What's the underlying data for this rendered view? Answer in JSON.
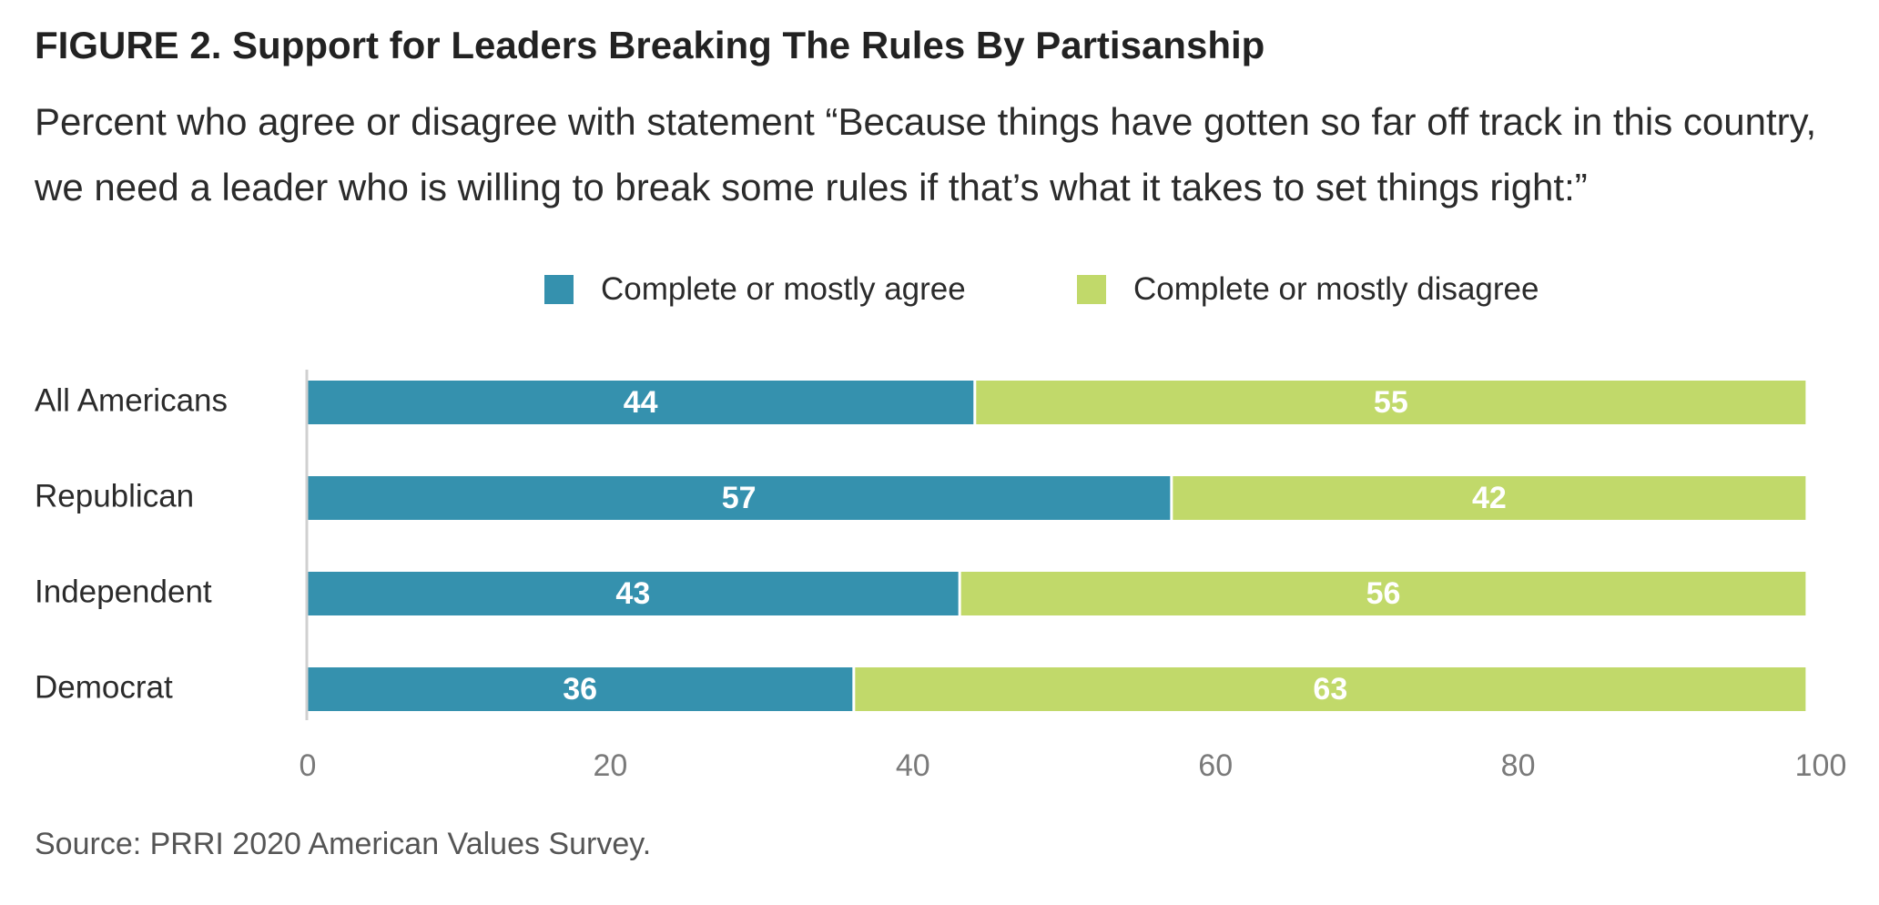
{
  "title": "FIGURE 2.  Support for Leaders Breaking The Rules By Partisanship",
  "subtitle": "Percent who agree or disagree with statement “Because things have gotten so far off track in this country, we need a leader who is willing to break some rules if that’s what it takes to set things right:”",
  "source": "Source: PRRI 2020 American Values Survey.",
  "chart_data": {
    "type": "bar",
    "orientation": "horizontal",
    "stacked": true,
    "categories": [
      "All Americans",
      "Republican",
      "Independent",
      "Democrat"
    ],
    "series": [
      {
        "name": "Complete or mostly agree",
        "values": [
          44,
          57,
          43,
          36
        ],
        "color": "#3591ae"
      },
      {
        "name": "Complete or mostly disagree",
        "values": [
          55,
          42,
          56,
          63
        ],
        "color": "#c1d96a"
      }
    ],
    "xlim": [
      0,
      100
    ],
    "xticks": [
      0,
      20,
      40,
      60,
      80,
      100
    ],
    "grid": false,
    "legend": "top",
    "data_labels": true
  }
}
